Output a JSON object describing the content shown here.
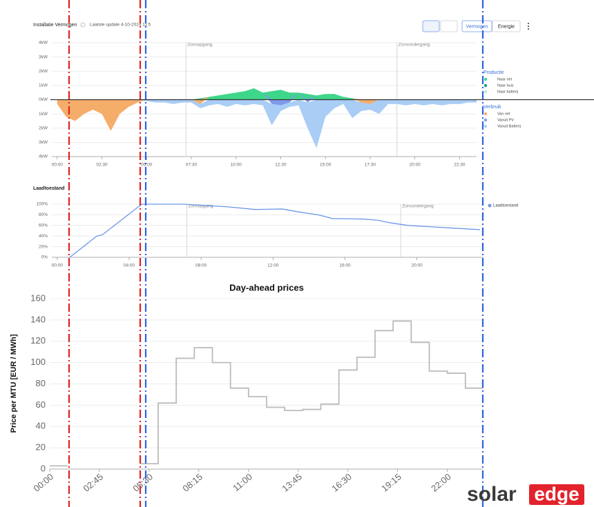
{
  "chart_data": [
    {
      "type": "area",
      "title": "Installatie Vermogen",
      "subtitle": "Laatste update 4-10-2024 11:5",
      "toolbar": [
        "Vermogen",
        "Energie"
      ],
      "x": [
        0,
        0.5,
        1,
        1.5,
        2,
        2.5,
        3,
        3.5,
        4,
        4.5,
        5,
        5.5,
        6,
        6.5,
        7,
        7.5,
        8,
        8.5,
        9,
        9.5,
        10,
        10.5,
        11,
        11.5,
        12,
        12.5,
        13,
        13.5,
        14,
        14.5,
        15,
        15.5,
        16,
        16.5,
        17,
        17.5,
        18,
        18.5,
        19,
        19.5,
        20,
        20.5,
        21,
        21.5,
        22,
        22.5,
        23,
        23.5
      ],
      "legend_titles": [
        "Productie",
        "Verbruik"
      ],
      "series": [
        {
          "name": "Naar net",
          "color": "#3ed68a",
          "values": [
            0,
            0,
            0,
            0,
            0,
            0,
            0,
            0,
            0,
            0,
            0,
            0,
            0,
            0,
            0,
            0,
            0.1,
            0.2,
            0.3,
            0.4,
            0.5,
            0.6,
            0.8,
            0.5,
            0.6,
            0.7,
            0.5,
            0.5,
            0.4,
            0.3,
            0.4,
            0.4,
            0.2,
            0.1,
            0,
            0,
            0,
            0,
            0,
            0,
            0,
            0,
            0,
            0,
            0,
            0,
            0,
            0
          ]
        },
        {
          "name": "Naar huis",
          "color": "#1a9e8a",
          "values": [
            0,
            0,
            0,
            0,
            0,
            0,
            0,
            0,
            0,
            0,
            0,
            0,
            0,
            0,
            0,
            0,
            0,
            0,
            0,
            0,
            0,
            0,
            0,
            0,
            0,
            0,
            0,
            0,
            0,
            0,
            0,
            0,
            0,
            0,
            0,
            0,
            0,
            0,
            0,
            0,
            0,
            0,
            0,
            0,
            0,
            0,
            0,
            0
          ]
        },
        {
          "name": "Naar batterij",
          "color": "#b8f0cf",
          "values": [
            0,
            0,
            0,
            0,
            0,
            0,
            0,
            0,
            0,
            0,
            0,
            0,
            0,
            0,
            0,
            0,
            0,
            0,
            0,
            0,
            0,
            0,
            0,
            0,
            0,
            0,
            0,
            0,
            0,
            0,
            0,
            0,
            0,
            0,
            0,
            0,
            0,
            0,
            0,
            0,
            0,
            0,
            0,
            0,
            0,
            0,
            0,
            0
          ]
        },
        {
          "name": "Van net",
          "color": "#f5ad6a",
          "values": [
            -0.3,
            -1.2,
            -1.5,
            -1.0,
            -0.7,
            -1.0,
            -2.2,
            -1.0,
            -0.5,
            -0.2,
            0,
            0,
            0,
            0,
            0,
            0,
            -0.3,
            0,
            0,
            0,
            0,
            0,
            0,
            0,
            0,
            0,
            0,
            0,
            0,
            0,
            0,
            0,
            0,
            0,
            -0.2,
            -0.3,
            0,
            0,
            0,
            0,
            0,
            0,
            0,
            0,
            0,
            0,
            0,
            0
          ]
        },
        {
          "name": "Vanuit PV",
          "color": "#7f9bea",
          "values": [
            0,
            0,
            0,
            0,
            0,
            0,
            0,
            0,
            0,
            0,
            0,
            0,
            0,
            0,
            0,
            0,
            0,
            0,
            0,
            0,
            0,
            0,
            0,
            0,
            -0.3,
            -0.4,
            -0.2,
            0,
            -0.2,
            0,
            0,
            0,
            0,
            0,
            0,
            0,
            0,
            0,
            0,
            0,
            0,
            0,
            0,
            0,
            0,
            0,
            0,
            0
          ]
        },
        {
          "name": "Vanuit Batterij",
          "color": "#a9cdf5",
          "values": [
            0,
            0,
            0,
            0,
            0,
            0,
            0,
            0,
            0,
            0,
            -0.1,
            -0.2,
            -0.2,
            -0.3,
            -0.2,
            -0.2,
            -0.3,
            -0.4,
            -0.3,
            -0.5,
            -0.3,
            -0.4,
            -0.3,
            -0.4,
            -1.5,
            -0.4,
            -0.3,
            -0.4,
            -1.8,
            -3.4,
            -1.2,
            -0.6,
            -0.3,
            -1.3,
            -0.6,
            -0.4,
            -1.0,
            -0.3,
            -0.3,
            -0.4,
            -0.3,
            -0.4,
            -0.3,
            -0.4,
            -0.3,
            -0.3,
            -0.2,
            -0.2
          ]
        }
      ],
      "annotations": [
        {
          "text": "Zonsopgang",
          "x": 7.2
        },
        {
          "text": "Zonsondergang",
          "x": 19
        }
      ],
      "xlim": [
        -0.3,
        23.45
      ],
      "xticks": [
        {
          "value": 0,
          "label": "00:00"
        },
        {
          "value": 2.5,
          "label": "02:30"
        },
        {
          "value": 5,
          "label": "05:00"
        },
        {
          "value": 7.5,
          "label": "07:30"
        },
        {
          "value": 10,
          "label": "10:00"
        },
        {
          "value": 12.5,
          "label": "12:30"
        },
        {
          "value": 15,
          "label": "15:00"
        },
        {
          "value": 17.5,
          "label": "17:30"
        },
        {
          "value": 20,
          "label": "20:00"
        },
        {
          "value": 22.5,
          "label": "22:30"
        }
      ],
      "ylim": [
        -4,
        4
      ],
      "yticks": [
        {
          "value": 4,
          "label": "4kW"
        },
        {
          "value": 3,
          "label": "3kW"
        },
        {
          "value": 2,
          "label": "2kW"
        },
        {
          "value": 1,
          "label": "1kW"
        },
        {
          "value": 0,
          "label": "0kW"
        },
        {
          "value": -1,
          "label": "1kW"
        },
        {
          "value": -2,
          "label": "2kW"
        },
        {
          "value": -3,
          "label": "3kW"
        },
        {
          "value": -4,
          "label": "4kW"
        }
      ],
      "grid": true
    },
    {
      "type": "line",
      "title": "Laadtoestand",
      "x": [
        0.7,
        2.2,
        2.5,
        4.7,
        7,
        8,
        9.5,
        11,
        12.5,
        13.5,
        14.5,
        15.3,
        17,
        17.8,
        18.5,
        19.5,
        21,
        22.5,
        23.5
      ],
      "series": [
        {
          "name": "Laadtoestand",
          "color": "#6b98ea",
          "values": [
            0,
            40,
            42,
            100,
            100,
            98,
            95,
            90,
            91,
            85,
            80,
            73,
            72,
            70,
            65,
            60,
            57,
            54,
            52
          ]
        }
      ],
      "annotations": [
        {
          "text": "Zonsopgang",
          "x": 7.2
        },
        {
          "text": "Zonsondergang",
          "x": 19.1
        }
      ],
      "xlim": [
        -0.3,
        23.7
      ],
      "xticks": [
        {
          "value": 0,
          "label": "00:00"
        },
        {
          "value": 4,
          "label": "04:00"
        },
        {
          "value": 8,
          "label": "08:00"
        },
        {
          "value": 12,
          "label": "12:00"
        },
        {
          "value": 16,
          "label": "16:00"
        },
        {
          "value": 20,
          "label": "20:00"
        }
      ],
      "ylim": [
        0,
        100
      ],
      "yticks": [
        {
          "value": 0,
          "label": "0%"
        },
        {
          "value": 20,
          "label": "20%"
        },
        {
          "value": 40,
          "label": "40%"
        },
        {
          "value": 60,
          "label": "60%"
        },
        {
          "value": 80,
          "label": "80%"
        },
        {
          "value": 100,
          "label": "100%"
        }
      ],
      "grid": true
    },
    {
      "type": "step",
      "title": "Day-ahead prices",
      "y_label": "Price per MTU [EUR / MWh]",
      "x": [
        0,
        1,
        2,
        3,
        4,
        5,
        6,
        7,
        8,
        9,
        10,
        11,
        12,
        13,
        14,
        15,
        16,
        17,
        18,
        19,
        20,
        21,
        22,
        23
      ],
      "series": [
        {
          "name": "Day-ahead",
          "color": "#bbbbbb",
          "values": [
            3,
            null,
            null,
            null,
            null,
            5,
            62,
            104,
            114,
            100,
            76,
            68,
            58,
            55,
            56,
            61,
            93,
            105,
            130,
            139,
            119,
            92,
            90,
            76
          ]
        }
      ],
      "xlim": [
        0,
        24
      ],
      "xticks": [
        {
          "value": 0,
          "label": "00:00"
        },
        {
          "value": 2.75,
          "label": "02:45"
        },
        {
          "value": 5.5,
          "label": "05:30"
        },
        {
          "value": 8.25,
          "label": "08:15"
        },
        {
          "value": 11,
          "label": "11:00"
        },
        {
          "value": 13.75,
          "label": "13:45"
        },
        {
          "value": 16.5,
          "label": "16:30"
        },
        {
          "value": 19.25,
          "label": "19:15"
        },
        {
          "value": 22,
          "label": "22:00"
        }
      ],
      "ylim": [
        0,
        160
      ],
      "yticks": [
        0,
        20,
        40,
        60,
        80,
        100,
        120,
        140,
        160
      ],
      "grid": true
    }
  ],
  "logo": {
    "left": "solar",
    "right": "edge"
  }
}
